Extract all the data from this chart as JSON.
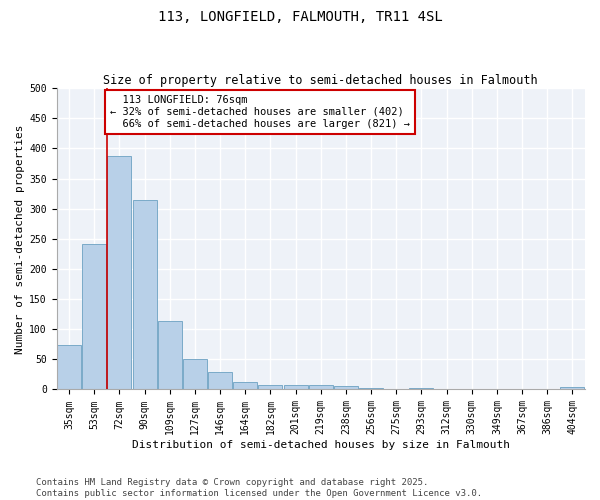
{
  "title_line1": "113, LONGFIELD, FALMOUTH, TR11 4SL",
  "title_line2": "Size of property relative to semi-detached houses in Falmouth",
  "xlabel": "Distribution of semi-detached houses by size in Falmouth",
  "ylabel": "Number of semi-detached properties",
  "categories": [
    "35sqm",
    "53sqm",
    "72sqm",
    "90sqm",
    "109sqm",
    "127sqm",
    "146sqm",
    "164sqm",
    "182sqm",
    "201sqm",
    "219sqm",
    "238sqm",
    "256sqm",
    "275sqm",
    "293sqm",
    "312sqm",
    "330sqm",
    "349sqm",
    "367sqm",
    "386sqm",
    "404sqm"
  ],
  "values": [
    73,
    242,
    387,
    315,
    113,
    50,
    29,
    13,
    7,
    8,
    7,
    6,
    3,
    1,
    2,
    1,
    0,
    0,
    1,
    0,
    4
  ],
  "bar_color": "#b8d0e8",
  "bar_edge_color": "#7aaac8",
  "property_line_index": 2,
  "property_label": "113 LONGFIELD: 76sqm",
  "pct_smaller": "32%",
  "n_smaller": 402,
  "pct_larger": "66%",
  "n_larger": 821,
  "annotation_box_color": "#cc0000",
  "line_color": "#cc0000",
  "ylim": [
    0,
    500
  ],
  "yticks": [
    0,
    50,
    100,
    150,
    200,
    250,
    300,
    350,
    400,
    450,
    500
  ],
  "background_color": "#eef2f8",
  "grid_color": "#ffffff",
  "footnote": "Contains HM Land Registry data © Crown copyright and database right 2025.\nContains public sector information licensed under the Open Government Licence v3.0.",
  "title_fontsize": 10,
  "subtitle_fontsize": 8.5,
  "axis_label_fontsize": 8,
  "tick_fontsize": 7,
  "annotation_fontsize": 7.5,
  "footnote_fontsize": 6.5
}
